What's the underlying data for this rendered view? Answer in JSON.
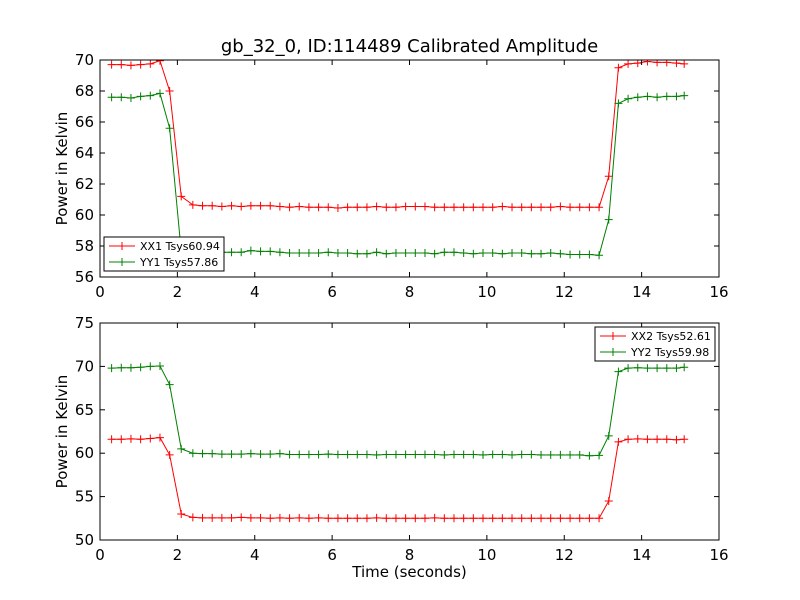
{
  "chart_data": [
    {
      "type": "line",
      "title": "gb_32_0, ID:114489 Calibrated Amplitude",
      "xlabel": "",
      "ylabel": "Power in Kelvin",
      "xlim": [
        0,
        16
      ],
      "ylim": [
        56,
        70
      ],
      "xticks": [
        0,
        2,
        4,
        6,
        8,
        10,
        12,
        14,
        16
      ],
      "yticks": [
        56,
        58,
        60,
        62,
        64,
        66,
        68,
        70
      ],
      "legend_position": "lower-left",
      "x": [
        0.3,
        0.55,
        0.8,
        1.05,
        1.3,
        1.55,
        1.8,
        2.1,
        2.4,
        2.65,
        2.9,
        3.15,
        3.4,
        3.65,
        3.9,
        4.15,
        4.4,
        4.65,
        4.9,
        5.15,
        5.4,
        5.65,
        5.9,
        6.15,
        6.4,
        6.65,
        6.9,
        7.15,
        7.4,
        7.65,
        7.9,
        8.15,
        8.4,
        8.65,
        8.9,
        9.15,
        9.4,
        9.65,
        9.9,
        10.15,
        10.4,
        10.65,
        10.9,
        11.15,
        11.4,
        11.65,
        11.9,
        12.15,
        12.4,
        12.65,
        12.9,
        13.15,
        13.4,
        13.65,
        13.9,
        14.15,
        14.4,
        14.65,
        14.9,
        15.1
      ],
      "series": [
        {
          "name": "XX1 Tsys60.94",
          "color": "#ff0000",
          "values": [
            69.7,
            69.7,
            69.65,
            69.7,
            69.75,
            69.95,
            68.0,
            61.2,
            60.65,
            60.6,
            60.6,
            60.55,
            60.6,
            60.55,
            60.6,
            60.6,
            60.6,
            60.55,
            60.5,
            60.55,
            60.5,
            60.5,
            60.5,
            60.45,
            60.5,
            60.5,
            60.5,
            60.55,
            60.5,
            60.5,
            60.55,
            60.55,
            60.55,
            60.5,
            60.5,
            60.5,
            60.5,
            60.5,
            60.5,
            60.5,
            60.55,
            60.5,
            60.5,
            60.5,
            60.5,
            60.5,
            60.55,
            60.5,
            60.5,
            60.5,
            60.5,
            62.5,
            69.5,
            69.75,
            69.8,
            69.9,
            69.85,
            69.85,
            69.8,
            69.75
          ]
        },
        {
          "name": "YY1 Tsys57.86",
          "color": "#008000",
          "values": [
            67.6,
            67.6,
            67.55,
            67.65,
            67.7,
            67.85,
            65.6,
            57.65,
            57.6,
            57.6,
            57.6,
            57.6,
            57.6,
            57.6,
            57.7,
            57.65,
            57.65,
            57.6,
            57.55,
            57.55,
            57.55,
            57.55,
            57.6,
            57.55,
            57.55,
            57.5,
            57.5,
            57.6,
            57.5,
            57.55,
            57.55,
            57.55,
            57.55,
            57.5,
            57.6,
            57.6,
            57.55,
            57.5,
            57.55,
            57.55,
            57.5,
            57.55,
            57.55,
            57.5,
            57.5,
            57.55,
            57.5,
            57.45,
            57.45,
            57.45,
            57.4,
            59.7,
            67.2,
            67.5,
            67.6,
            67.65,
            67.6,
            67.65,
            67.65,
            67.7
          ]
        }
      ]
    },
    {
      "type": "line",
      "title": "",
      "xlabel": "Time (seconds)",
      "ylabel": "Power in Kelvin",
      "xlim": [
        0,
        16
      ],
      "ylim": [
        50,
        75
      ],
      "xticks": [
        0,
        2,
        4,
        6,
        8,
        10,
        12,
        14,
        16
      ],
      "yticks": [
        50,
        55,
        60,
        65,
        70,
        75
      ],
      "legend_position": "upper-right",
      "x": [
        0.3,
        0.55,
        0.8,
        1.05,
        1.3,
        1.55,
        1.8,
        2.1,
        2.4,
        2.65,
        2.9,
        3.15,
        3.4,
        3.65,
        3.9,
        4.15,
        4.4,
        4.65,
        4.9,
        5.15,
        5.4,
        5.65,
        5.9,
        6.15,
        6.4,
        6.65,
        6.9,
        7.15,
        7.4,
        7.65,
        7.9,
        8.15,
        8.4,
        8.65,
        8.9,
        9.15,
        9.4,
        9.65,
        9.9,
        10.15,
        10.4,
        10.65,
        10.9,
        11.15,
        11.4,
        11.65,
        11.9,
        12.15,
        12.4,
        12.65,
        12.9,
        13.15,
        13.4,
        13.65,
        13.9,
        14.15,
        14.4,
        14.65,
        14.9,
        15.1
      ],
      "series": [
        {
          "name": "XX2 Tsys52.61",
          "color": "#ff0000",
          "values": [
            61.6,
            61.6,
            61.65,
            61.6,
            61.7,
            61.8,
            59.8,
            53.0,
            52.6,
            52.55,
            52.55,
            52.55,
            52.55,
            52.6,
            52.55,
            52.55,
            52.5,
            52.55,
            52.5,
            52.55,
            52.5,
            52.55,
            52.5,
            52.5,
            52.5,
            52.5,
            52.5,
            52.55,
            52.5,
            52.5,
            52.5,
            52.5,
            52.5,
            52.55,
            52.5,
            52.5,
            52.5,
            52.5,
            52.5,
            52.5,
            52.5,
            52.5,
            52.5,
            52.5,
            52.5,
            52.5,
            52.5,
            52.5,
            52.5,
            52.5,
            52.5,
            54.5,
            61.3,
            61.6,
            61.65,
            61.6,
            61.6,
            61.6,
            61.55,
            61.6
          ]
        },
        {
          "name": "YY2 Tsys59.98",
          "color": "#008000",
          "values": [
            69.8,
            69.85,
            69.85,
            69.9,
            70.0,
            70.05,
            67.9,
            60.5,
            60.0,
            59.95,
            59.95,
            59.9,
            59.9,
            59.9,
            59.95,
            59.9,
            59.9,
            59.95,
            59.85,
            59.85,
            59.85,
            59.85,
            59.9,
            59.85,
            59.85,
            59.85,
            59.85,
            59.8,
            59.85,
            59.85,
            59.85,
            59.85,
            59.85,
            59.85,
            59.8,
            59.85,
            59.85,
            59.85,
            59.8,
            59.85,
            59.85,
            59.8,
            59.85,
            59.85,
            59.8,
            59.8,
            59.8,
            59.8,
            59.8,
            59.7,
            59.75,
            62.0,
            69.4,
            69.8,
            69.85,
            69.8,
            69.8,
            69.8,
            69.8,
            69.9
          ]
        }
      ]
    }
  ]
}
